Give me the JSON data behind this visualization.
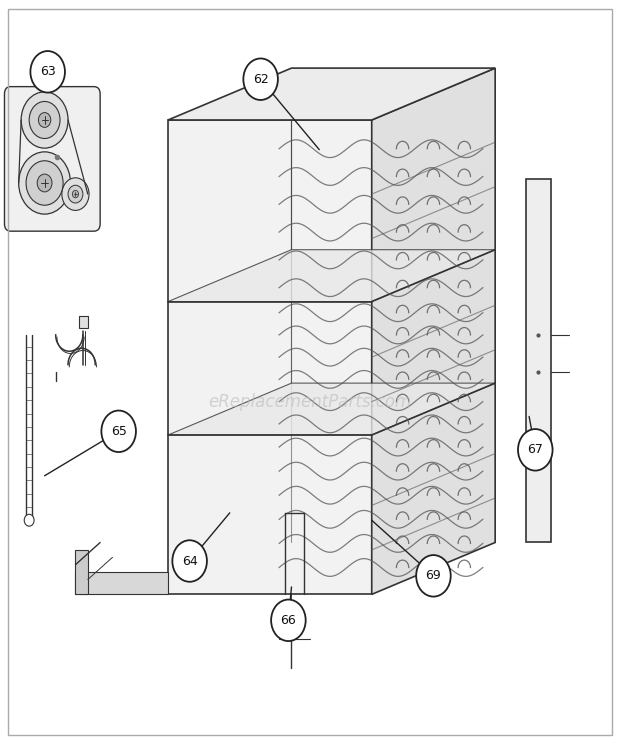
{
  "bg_color": "#ffffff",
  "line_color": "#333333",
  "watermark_text": "eReplacementParts.com",
  "watermark_color": "#bbbbbb",
  "watermark_alpha": 0.6,
  "fig_width": 6.2,
  "fig_height": 7.44,
  "dpi": 100
}
